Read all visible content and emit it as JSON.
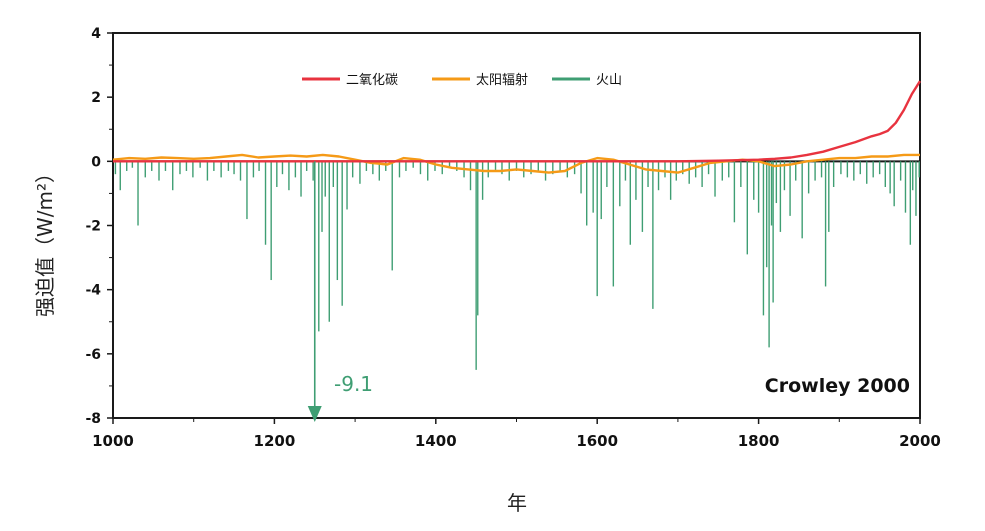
{
  "chart_data": {
    "type": "line",
    "title": "",
    "xlabel": "年",
    "ylabel": "强迫值（W/m²）",
    "xlim": [
      1000,
      2000
    ],
    "ylim": [
      -8,
      4
    ],
    "x_ticks": [
      1000,
      1200,
      1400,
      1600,
      1800,
      2000
    ],
    "y_ticks": [
      4,
      2,
      0,
      -2,
      -4,
      -6,
      -8
    ],
    "grid": false,
    "legend_position": "top-center",
    "credit": "Crowley 2000",
    "annotation": {
      "text": "-9.1",
      "x": 1250,
      "y": -9.1
    },
    "colors": {
      "co2": "#e8333f",
      "solar": "#f59a17",
      "volcano": "#3f9e73",
      "zero": "#1a1a1a"
    },
    "series": [
      {
        "name": "二氧化碳",
        "key": "co2",
        "x": [
          1000,
          1100,
          1200,
          1300,
          1400,
          1500,
          1600,
          1700,
          1750,
          1800,
          1820,
          1840,
          1860,
          1880,
          1900,
          1920,
          1940,
          1950,
          1960,
          1970,
          1980,
          1990,
          2000
        ],
        "y": [
          0,
          0,
          0,
          0,
          0,
          0,
          0,
          0,
          0.02,
          0.05,
          0.08,
          0.12,
          0.2,
          0.3,
          0.45,
          0.6,
          0.78,
          0.85,
          0.95,
          1.2,
          1.6,
          2.1,
          2.5
        ]
      },
      {
        "name": "太阳辐射",
        "key": "solar",
        "x": [
          1000,
          1020,
          1040,
          1060,
          1080,
          1100,
          1120,
          1140,
          1160,
          1180,
          1200,
          1220,
          1240,
          1260,
          1280,
          1300,
          1320,
          1340,
          1360,
          1380,
          1400,
          1420,
          1440,
          1460,
          1480,
          1500,
          1520,
          1540,
          1560,
          1580,
          1600,
          1620,
          1640,
          1660,
          1680,
          1700,
          1720,
          1740,
          1760,
          1780,
          1800,
          1820,
          1840,
          1860,
          1880,
          1900,
          1920,
          1940,
          1960,
          1980,
          2000
        ],
        "y": [
          0.05,
          0.1,
          0.08,
          0.12,
          0.1,
          0.08,
          0.1,
          0.15,
          0.2,
          0.12,
          0.15,
          0.18,
          0.15,
          0.2,
          0.15,
          0.05,
          -0.05,
          -0.1,
          0.1,
          0.05,
          -0.1,
          -0.2,
          -0.25,
          -0.3,
          -0.3,
          -0.25,
          -0.3,
          -0.35,
          -0.3,
          -0.05,
          0.1,
          0.05,
          -0.1,
          -0.25,
          -0.3,
          -0.35,
          -0.2,
          -0.05,
          0.0,
          0.05,
          0.0,
          -0.15,
          -0.1,
          0.0,
          0.05,
          0.1,
          0.1,
          0.15,
          0.15,
          0.2,
          0.2
        ]
      },
      {
        "name": "火山",
        "key": "volcano",
        "x": [
          1003,
          1009,
          1017,
          1024,
          1031,
          1040,
          1048,
          1057,
          1065,
          1074,
          1083,
          1091,
          1099,
          1108,
          1117,
          1125,
          1134,
          1143,
          1150,
          1158,
          1166,
          1174,
          1181,
          1189,
          1196,
          1203,
          1210,
          1218,
          1226,
          1233,
          1240,
          1248,
          1250,
          1255,
          1259,
          1263,
          1268,
          1273,
          1278,
          1284,
          1290,
          1297,
          1306,
          1314,
          1322,
          1330,
          1338,
          1346,
          1355,
          1363,
          1372,
          1381,
          1390,
          1399,
          1408,
          1417,
          1426,
          1435,
          1443,
          1450,
          1452,
          1458,
          1465,
          1474,
          1482,
          1491,
          1500,
          1509,
          1518,
          1527,
          1536,
          1545,
          1554,
          1563,
          1572,
          1580,
          1587,
          1595,
          1600,
          1605,
          1612,
          1620,
          1628,
          1635,
          1641,
          1648,
          1656,
          1663,
          1669,
          1676,
          1684,
          1691,
          1698,
          1706,
          1714,
          1722,
          1730,
          1738,
          1746,
          1755,
          1763,
          1770,
          1778,
          1786,
          1794,
          1800,
          1806,
          1810,
          1813,
          1816,
          1818,
          1822,
          1827,
          1832,
          1839,
          1846,
          1854,
          1862,
          1870,
          1878,
          1883,
          1887,
          1893,
          1902,
          1910,
          1918,
          1926,
          1934,
          1942,
          1950,
          1957,
          1963,
          1968,
          1976,
          1982,
          1988,
          1991,
          1995,
          1999
        ],
        "y": [
          -0.4,
          -0.9,
          -0.3,
          -0.2,
          -2.0,
          -0.5,
          -0.3,
          -0.6,
          -0.3,
          -0.9,
          -0.4,
          -0.3,
          -0.5,
          -0.2,
          -0.6,
          -0.3,
          -0.5,
          -0.3,
          -0.4,
          -0.6,
          -1.8,
          -0.5,
          -0.3,
          -2.6,
          -3.7,
          -0.8,
          -0.4,
          -0.9,
          -0.5,
          -1.1,
          -0.3,
          -0.6,
          -9.1,
          -5.3,
          -2.2,
          -1.1,
          -5.0,
          -0.8,
          -3.7,
          -4.5,
          -1.5,
          -0.5,
          -0.7,
          -0.3,
          -0.4,
          -0.6,
          -0.3,
          -3.4,
          -0.5,
          -0.3,
          -0.2,
          -0.4,
          -0.6,
          -0.3,
          -0.4,
          -0.2,
          -0.3,
          -0.5,
          -0.9,
          -6.5,
          -4.8,
          -1.2,
          -0.5,
          -0.3,
          -0.4,
          -0.6,
          -0.3,
          -0.5,
          -0.4,
          -0.3,
          -0.6,
          -0.4,
          -0.3,
          -0.5,
          -0.4,
          -1.0,
          -2.0,
          -1.6,
          -4.2,
          -1.8,
          -0.8,
          -3.9,
          -1.4,
          -0.6,
          -2.6,
          -1.2,
          -2.2,
          -0.8,
          -4.6,
          -0.9,
          -0.5,
          -1.2,
          -0.6,
          -0.4,
          -0.7,
          -0.5,
          -0.8,
          -0.4,
          -1.1,
          -0.6,
          -0.5,
          -1.9,
          -0.8,
          -2.9,
          -1.2,
          -1.6,
          -4.8,
          -3.3,
          -5.8,
          -2.0,
          -4.4,
          -1.3,
          -2.2,
          -0.9,
          -1.7,
          -0.6,
          -2.4,
          -1.0,
          -0.6,
          -0.5,
          -3.9,
          -2.2,
          -0.8,
          -0.4,
          -0.5,
          -0.6,
          -0.4,
          -0.7,
          -0.5,
          -0.4,
          -0.8,
          -1.0,
          -1.4,
          -0.6,
          -1.6,
          -2.6,
          -0.9,
          -1.7,
          -0.5
        ]
      }
    ]
  }
}
